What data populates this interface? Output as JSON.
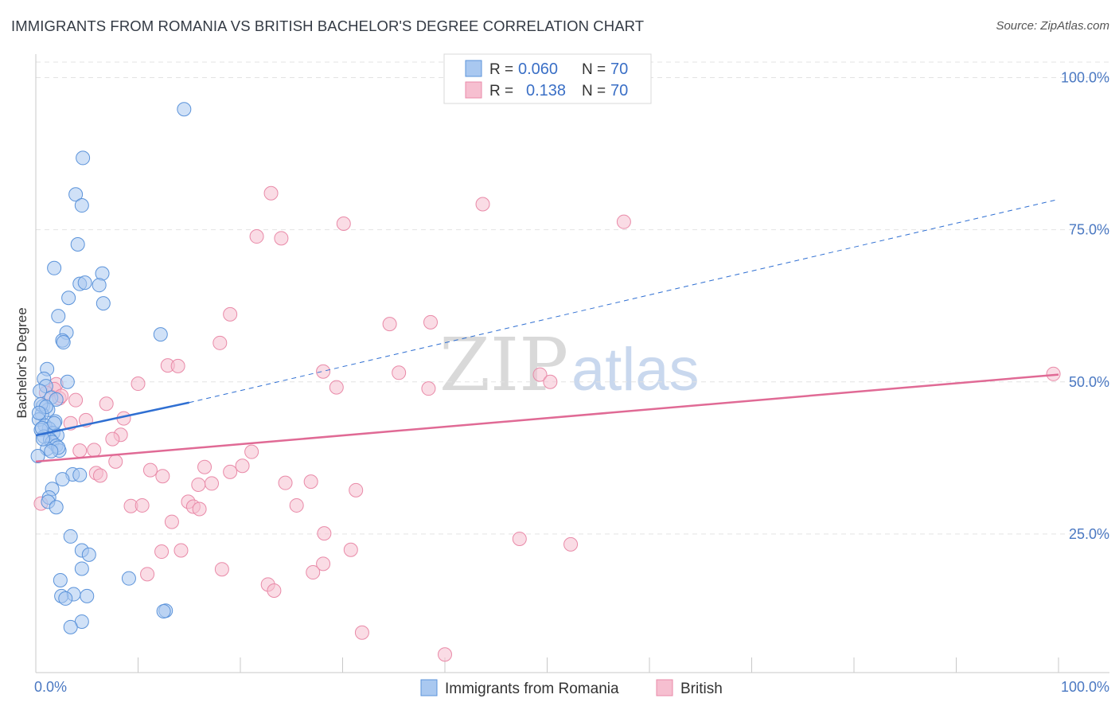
{
  "title": "IMMIGRANTS FROM ROMANIA VS BRITISH BACHELOR'S DEGREE CORRELATION CHART",
  "source": "Source: ZipAtlas.com",
  "watermark": {
    "zip": "ZIP",
    "atlas": "atlas"
  },
  "colors": {
    "romania_fill": "#a9c8f0",
    "romania_stroke": "#5b93da",
    "romania_line": "#2f6fd2",
    "british_fill": "#f6bfd0",
    "british_stroke": "#e98aa8",
    "british_line": "#e06a95",
    "tick": "#4a78c2",
    "grid": "#e3e3e3"
  },
  "legend": {
    "rows": [
      {
        "r_label": "R =",
        "r_value": "0.060",
        "n_label": "N =",
        "n_value": "70"
      },
      {
        "r_label": "R =",
        "r_value": "0.138",
        "n_label": "N =",
        "n_value": "70"
      }
    ]
  },
  "bottom_legend": {
    "series1": "Immigrants from Romania",
    "series2": "British"
  },
  "chart_data": {
    "type": "scatter",
    "title": "IMMIGRANTS FROM ROMANIA VS BRITISH BACHELOR'S DEGREE CORRELATION CHART",
    "xlabel": "",
    "ylabel": "Bachelor's Degree",
    "xlim": [
      0,
      100
    ],
    "ylim": [
      0,
      105
    ],
    "x_tick_labels": {
      "left": "0.0%",
      "right": "100.0%"
    },
    "y_ticks": [
      {
        "value": 25,
        "label": "25.0%"
      },
      {
        "value": 50,
        "label": "50.0%"
      },
      {
        "value": 75,
        "label": "75.0%"
      },
      {
        "value": 100,
        "label": "100.0%"
      }
    ],
    "series": [
      {
        "name": "Immigrants from Romania",
        "trend": {
          "x0": 0,
          "y0": 41.2,
          "x1": 15,
          "y1": 46.6,
          "dashed_to_x": 100,
          "dashed_to_y": 80.0
        },
        "points": [
          [
            14.5,
            94.8
          ],
          [
            4.6,
            86.8
          ],
          [
            3.9,
            80.8
          ],
          [
            4.5,
            79.0
          ],
          [
            4.1,
            72.6
          ],
          [
            1.8,
            68.7
          ],
          [
            6.5,
            67.8
          ],
          [
            4.3,
            66.1
          ],
          [
            4.8,
            66.3
          ],
          [
            6.2,
            65.9
          ],
          [
            3.2,
            63.8
          ],
          [
            6.6,
            62.9
          ],
          [
            2.2,
            60.8
          ],
          [
            3.0,
            58.1
          ],
          [
            12.2,
            57.8
          ],
          [
            2.6,
            56.8
          ],
          [
            2.7,
            56.5
          ],
          [
            1.1,
            52.1
          ],
          [
            0.8,
            50.5
          ],
          [
            3.1,
            50.0
          ],
          [
            1.0,
            49.3
          ],
          [
            0.4,
            48.5
          ],
          [
            1.5,
            47.4
          ],
          [
            2.0,
            47.1
          ],
          [
            0.7,
            46.0
          ],
          [
            1.2,
            45.4
          ],
          [
            0.6,
            44.7
          ],
          [
            0.3,
            43.8
          ],
          [
            1.9,
            43.5
          ],
          [
            0.9,
            42.8
          ],
          [
            1.3,
            42.3
          ],
          [
            0.5,
            42.1
          ],
          [
            1.7,
            41.6
          ],
          [
            2.1,
            41.2
          ],
          [
            0.8,
            41.0
          ],
          [
            1.4,
            40.5
          ],
          [
            1.6,
            40.1
          ],
          [
            2.0,
            39.5
          ],
          [
            1.1,
            39.0
          ],
          [
            2.3,
            38.7
          ],
          [
            0.2,
            37.8
          ],
          [
            3.6,
            34.8
          ],
          [
            4.3,
            34.7
          ],
          [
            2.6,
            34.0
          ],
          [
            1.6,
            32.4
          ],
          [
            1.3,
            31.0
          ],
          [
            1.2,
            30.3
          ],
          [
            2.0,
            29.4
          ],
          [
            3.4,
            24.6
          ],
          [
            4.5,
            22.3
          ],
          [
            5.2,
            21.6
          ],
          [
            4.5,
            19.3
          ],
          [
            9.1,
            17.7
          ],
          [
            2.4,
            17.4
          ],
          [
            3.7,
            15.1
          ],
          [
            2.5,
            14.8
          ],
          [
            2.9,
            14.4
          ],
          [
            5.0,
            14.8
          ],
          [
            12.7,
            12.4
          ],
          [
            12.5,
            12.3
          ],
          [
            4.5,
            10.6
          ],
          [
            3.4,
            9.7
          ],
          [
            0.5,
            46.3
          ],
          [
            1.0,
            45.9
          ],
          [
            0.3,
            44.9
          ],
          [
            1.8,
            43.2
          ],
          [
            0.7,
            40.6
          ],
          [
            2.2,
            39.2
          ],
          [
            1.5,
            38.6
          ],
          [
            0.6,
            42.4
          ]
        ]
      },
      {
        "name": "British",
        "trend": {
          "x0": 0,
          "y0": 36.9,
          "x1": 100,
          "y1": 51.2
        },
        "points": [
          [
            23.0,
            81.0
          ],
          [
            43.7,
            79.2
          ],
          [
            30.1,
            76.0
          ],
          [
            57.5,
            76.3
          ],
          [
            21.6,
            73.9
          ],
          [
            24.0,
            73.6
          ],
          [
            19.0,
            61.1
          ],
          [
            38.6,
            59.8
          ],
          [
            34.6,
            59.5
          ],
          [
            18.0,
            56.4
          ],
          [
            12.9,
            52.7
          ],
          [
            13.9,
            52.6
          ],
          [
            28.1,
            51.7
          ],
          [
            35.5,
            51.5
          ],
          [
            49.3,
            51.2
          ],
          [
            50.3,
            50.0
          ],
          [
            99.5,
            51.3
          ],
          [
            10.0,
            49.7
          ],
          [
            2.0,
            49.6
          ],
          [
            29.4,
            49.1
          ],
          [
            38.4,
            48.9
          ],
          [
            1.8,
            48.8
          ],
          [
            2.3,
            47.3
          ],
          [
            3.9,
            47.0
          ],
          [
            6.9,
            46.4
          ],
          [
            8.6,
            44.0
          ],
          [
            4.9,
            43.7
          ],
          [
            3.4,
            43.2
          ],
          [
            8.3,
            41.3
          ],
          [
            7.5,
            40.6
          ],
          [
            21.1,
            38.5
          ],
          [
            5.7,
            38.8
          ],
          [
            4.3,
            38.7
          ],
          [
            7.8,
            36.9
          ],
          [
            16.5,
            36.0
          ],
          [
            20.2,
            36.2
          ],
          [
            11.2,
            35.5
          ],
          [
            19.0,
            35.2
          ],
          [
            5.9,
            35.0
          ],
          [
            6.3,
            34.6
          ],
          [
            12.4,
            34.5
          ],
          [
            26.9,
            33.6
          ],
          [
            24.4,
            33.4
          ],
          [
            17.2,
            33.3
          ],
          [
            15.9,
            33.1
          ],
          [
            31.3,
            32.2
          ],
          [
            14.9,
            30.3
          ],
          [
            9.3,
            29.6
          ],
          [
            10.4,
            29.7
          ],
          [
            25.5,
            29.7
          ],
          [
            15.4,
            29.5
          ],
          [
            16.0,
            29.1
          ],
          [
            13.3,
            27.0
          ],
          [
            28.2,
            25.1
          ],
          [
            47.3,
            24.2
          ],
          [
            52.3,
            23.3
          ],
          [
            30.8,
            22.4
          ],
          [
            12.3,
            22.1
          ],
          [
            14.2,
            22.3
          ],
          [
            28.1,
            20.1
          ],
          [
            18.2,
            19.2
          ],
          [
            27.1,
            18.7
          ],
          [
            10.9,
            18.4
          ],
          [
            22.7,
            16.7
          ],
          [
            23.3,
            15.7
          ],
          [
            31.9,
            8.8
          ],
          [
            40.0,
            5.2
          ],
          [
            0.5,
            30.0
          ],
          [
            1.0,
            48.2
          ],
          [
            2.5,
            47.7
          ]
        ]
      }
    ]
  }
}
